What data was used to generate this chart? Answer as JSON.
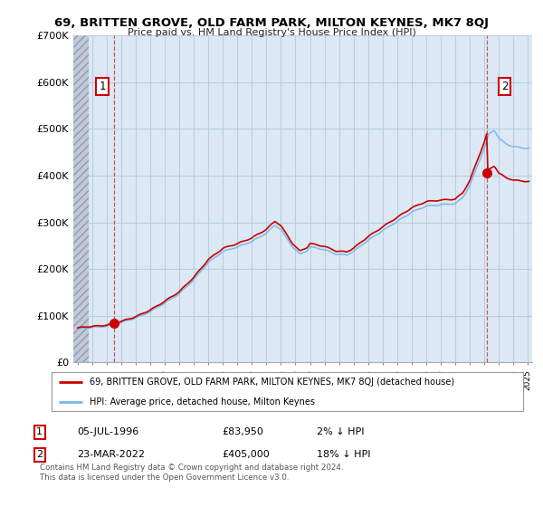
{
  "title": "69, BRITTEN GROVE, OLD FARM PARK, MILTON KEYNES, MK7 8QJ",
  "subtitle": "Price paid vs. HM Land Registry's House Price Index (HPI)",
  "legend_label_red": "69, BRITTEN GROVE, OLD FARM PARK, MILTON KEYNES, MK7 8QJ (detached house)",
  "legend_label_blue": "HPI: Average price, detached house, Milton Keynes",
  "footer": "Contains HM Land Registry data © Crown copyright and database right 2024.\nThis data is licensed under the Open Government Licence v3.0.",
  "ylim": [
    0,
    700000
  ],
  "yticks": [
    0,
    100000,
    200000,
    300000,
    400000,
    500000,
    600000,
    700000
  ],
  "ytick_labels": [
    "£0",
    "£100K",
    "£200K",
    "£300K",
    "£400K",
    "£500K",
    "£600K",
    "£700K"
  ],
  "xmin": 1993.7,
  "xmax": 2025.3,
  "point1_x": 1996.5,
  "point1_y": 83950,
  "point2_x": 2022.2,
  "point2_y": 405000,
  "hpi_color": "#7bb8e8",
  "price_color": "#cc0000",
  "background_plot": "#dce9f5",
  "grid_color": "#b8cfe0",
  "footer_color": "#555555",
  "ann_box_color": "#cc0000"
}
